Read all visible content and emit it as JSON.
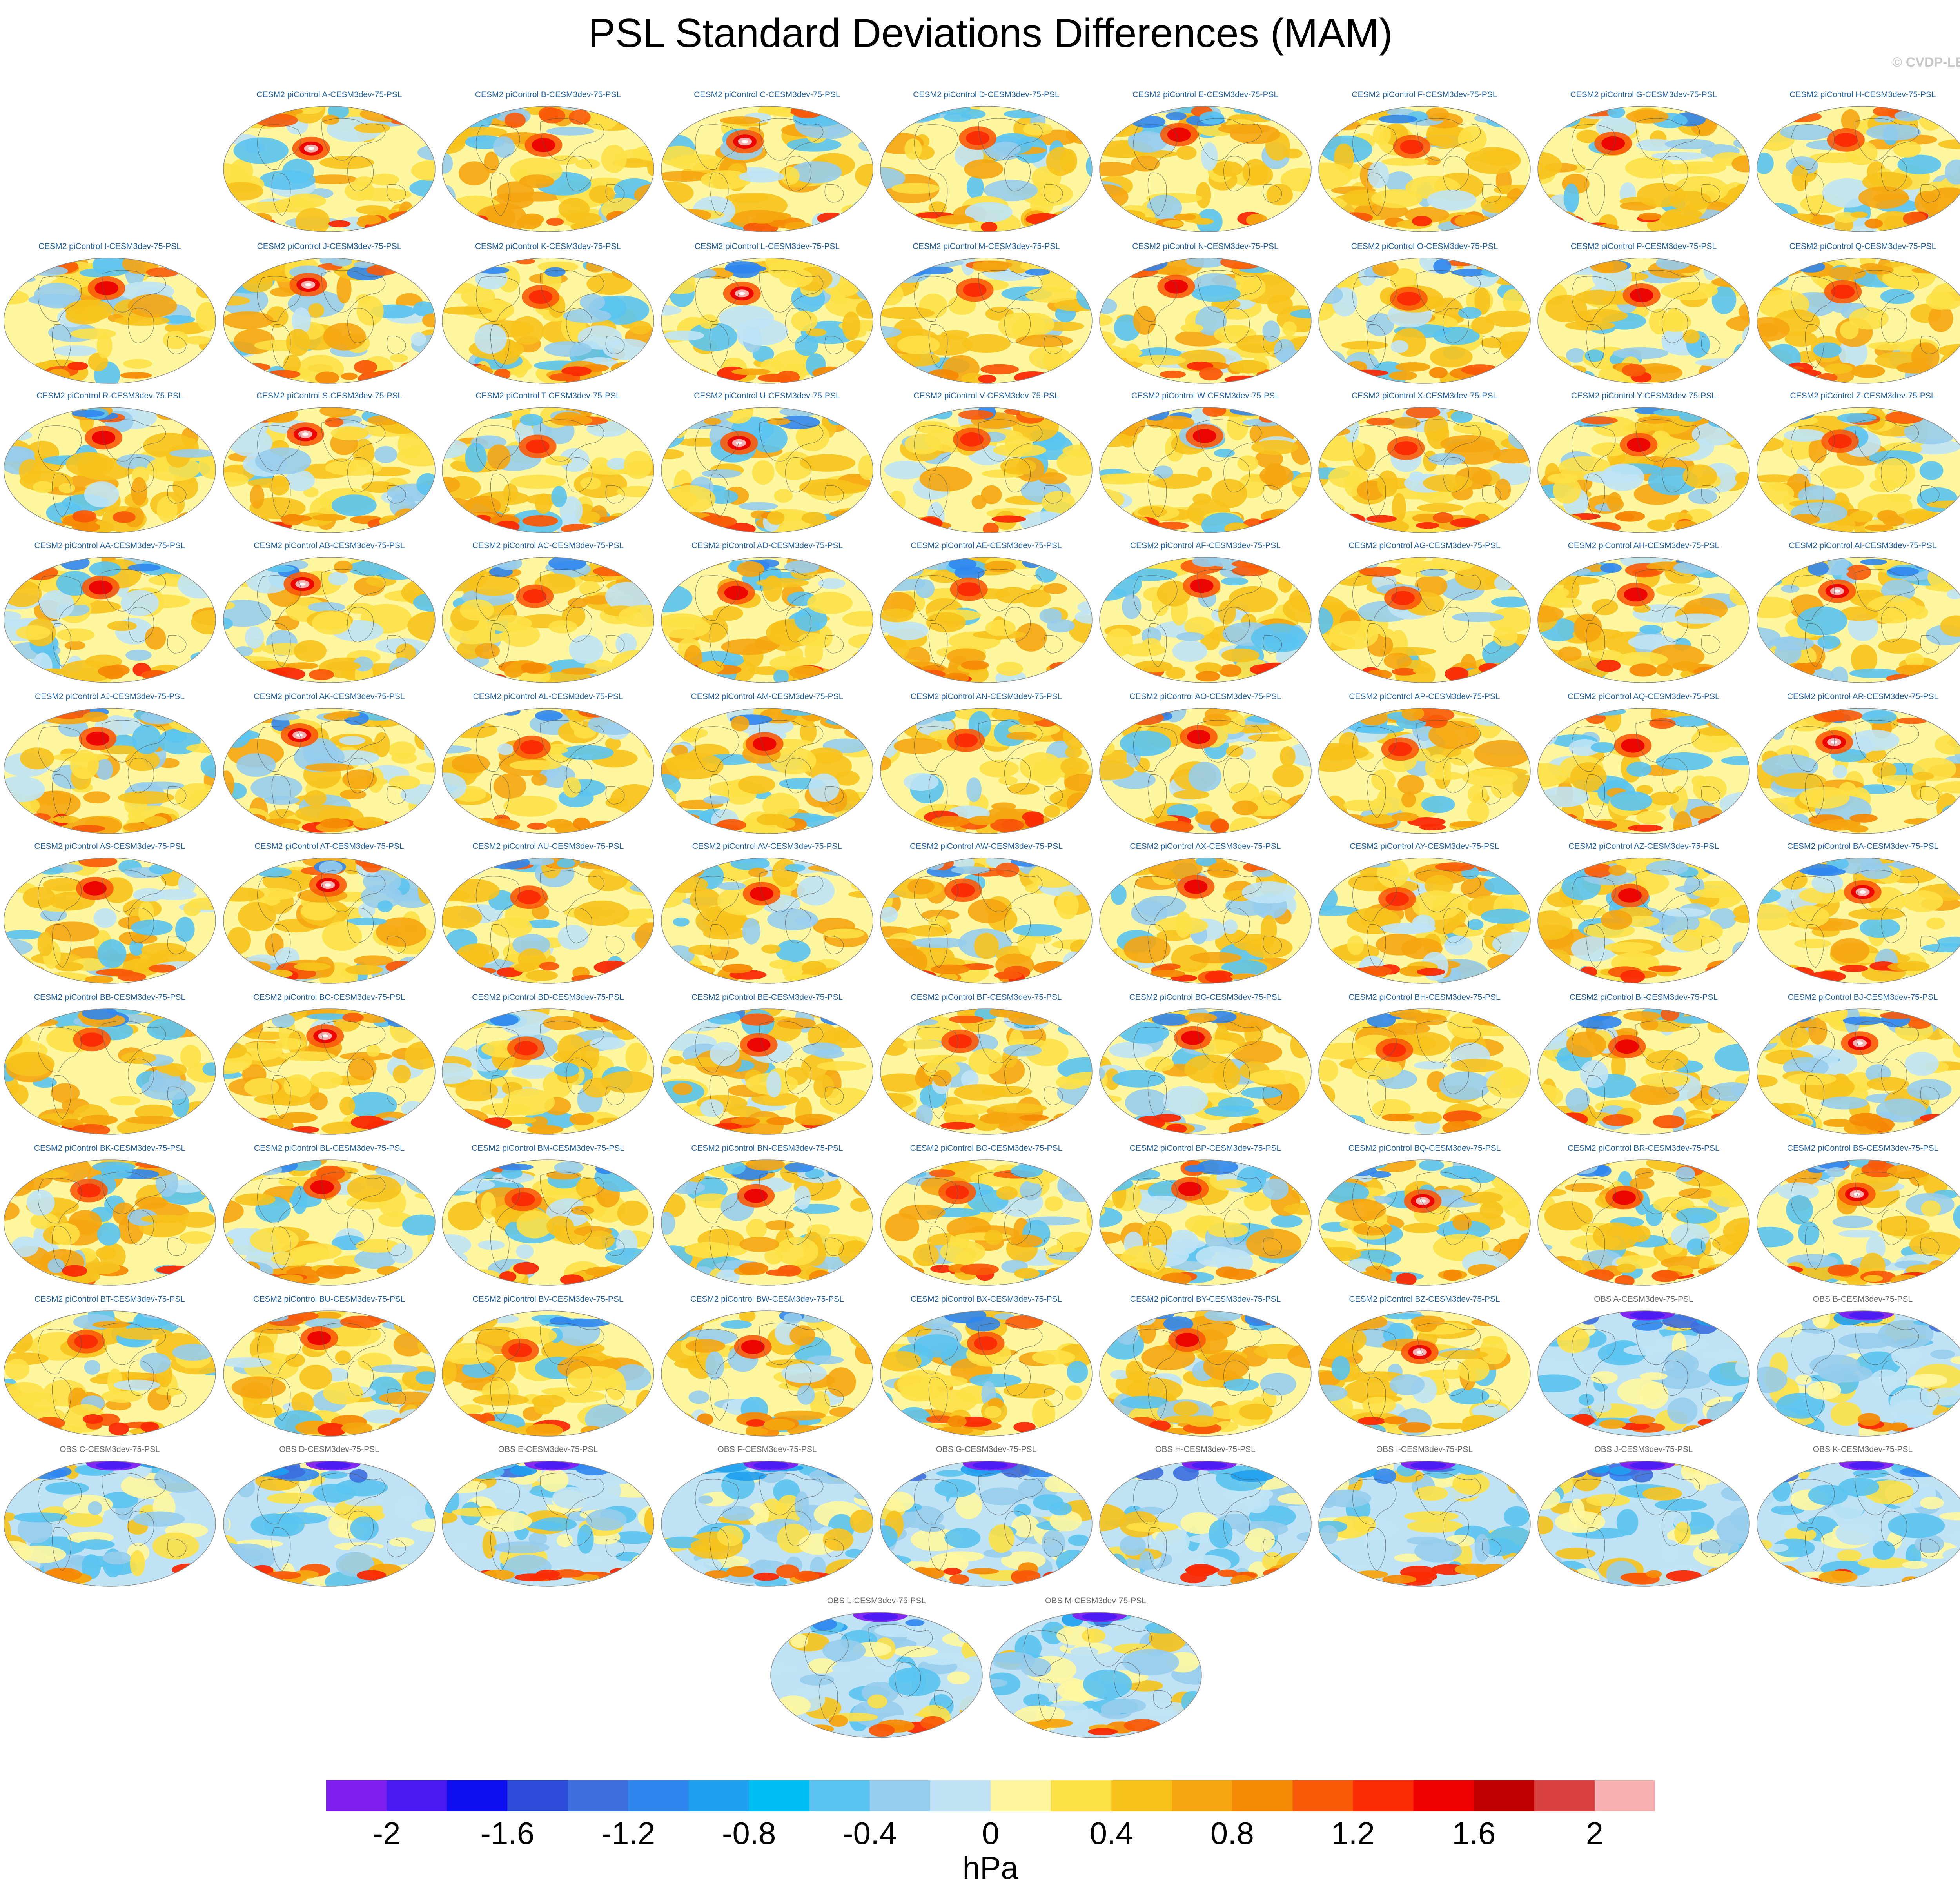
{
  "title": "PSL Standard Deviations Differences (MAM)",
  "copyright": "© CVDP-LE",
  "chart_data": {
    "type": "heatmap",
    "title": "PSL Standard Deviations Differences (MAM)",
    "units": "hPa",
    "colorbar": {
      "min": -2.2,
      "max": 2.2,
      "step": 0.2,
      "tick_labels": [
        "-2",
        "-1.6",
        "-1.2",
        "-0.8",
        "-0.4",
        "0",
        "0.4",
        "0.8",
        "1.2",
        "1.6",
        "2"
      ],
      "tick_values": [
        -2,
        -1.6,
        -1.2,
        -0.8,
        -0.4,
        0,
        0.4,
        0.8,
        1.2,
        1.6,
        2
      ],
      "colors": [
        "#7f1ff0",
        "#4a1cf2",
        "#0f0ff0",
        "#2e4cdc",
        "#3c6ee0",
        "#2f86ee",
        "#1f9ff0",
        "#00bff5",
        "#5ac3f0",
        "#96ccec",
        "#bfe3f5",
        "#fff7a0",
        "#fde046",
        "#f7c21c",
        "#f5a50f",
        "#f58a05",
        "#f95a08",
        "#fa2a05",
        "#ec0000",
        "#c00000",
        "#d94040",
        "#f6b0b0"
      ]
    },
    "panels": [
      {
        "label": "CESM2 piControl A-CESM3dev-75-PSL",
        "kind": "model"
      },
      {
        "label": "CESM2 piControl B-CESM3dev-75-PSL",
        "kind": "model"
      },
      {
        "label": "CESM2 piControl C-CESM3dev-75-PSL",
        "kind": "model"
      },
      {
        "label": "CESM2 piControl D-CESM3dev-75-PSL",
        "kind": "model"
      },
      {
        "label": "CESM2 piControl E-CESM3dev-75-PSL",
        "kind": "model"
      },
      {
        "label": "CESM2 piControl F-CESM3dev-75-PSL",
        "kind": "model"
      },
      {
        "label": "CESM2 piControl G-CESM3dev-75-PSL",
        "kind": "model"
      },
      {
        "label": "CESM2 piControl H-CESM3dev-75-PSL",
        "kind": "model"
      },
      {
        "label": "CESM2 piControl I-CESM3dev-75-PSL",
        "kind": "model"
      },
      {
        "label": "CESM2 piControl J-CESM3dev-75-PSL",
        "kind": "model"
      },
      {
        "label": "CESM2 piControl K-CESM3dev-75-PSL",
        "kind": "model"
      },
      {
        "label": "CESM2 piControl L-CESM3dev-75-PSL",
        "kind": "model"
      },
      {
        "label": "CESM2 piControl M-CESM3dev-75-PSL",
        "kind": "model"
      },
      {
        "label": "CESM2 piControl N-CESM3dev-75-PSL",
        "kind": "model"
      },
      {
        "label": "CESM2 piControl O-CESM3dev-75-PSL",
        "kind": "model"
      },
      {
        "label": "CESM2 piControl P-CESM3dev-75-PSL",
        "kind": "model"
      },
      {
        "label": "CESM2 piControl Q-CESM3dev-75-PSL",
        "kind": "model"
      },
      {
        "label": "CESM2 piControl R-CESM3dev-75-PSL",
        "kind": "model"
      },
      {
        "label": "CESM2 piControl S-CESM3dev-75-PSL",
        "kind": "model"
      },
      {
        "label": "CESM2 piControl T-CESM3dev-75-PSL",
        "kind": "model"
      },
      {
        "label": "CESM2 piControl U-CESM3dev-75-PSL",
        "kind": "model"
      },
      {
        "label": "CESM2 piControl V-CESM3dev-75-PSL",
        "kind": "model"
      },
      {
        "label": "CESM2 piControl W-CESM3dev-75-PSL",
        "kind": "model"
      },
      {
        "label": "CESM2 piControl X-CESM3dev-75-PSL",
        "kind": "model"
      },
      {
        "label": "CESM2 piControl Y-CESM3dev-75-PSL",
        "kind": "model"
      },
      {
        "label": "CESM2 piControl Z-CESM3dev-75-PSL",
        "kind": "model"
      },
      {
        "label": "CESM2 piControl AA-CESM3dev-75-PSL",
        "kind": "model"
      },
      {
        "label": "CESM2 piControl AB-CESM3dev-75-PSL",
        "kind": "model"
      },
      {
        "label": "CESM2 piControl AC-CESM3dev-75-PSL",
        "kind": "model"
      },
      {
        "label": "CESM2 piControl AD-CESM3dev-75-PSL",
        "kind": "model"
      },
      {
        "label": "CESM2 piControl AE-CESM3dev-75-PSL",
        "kind": "model"
      },
      {
        "label": "CESM2 piControl AF-CESM3dev-75-PSL",
        "kind": "model"
      },
      {
        "label": "CESM2 piControl AG-CESM3dev-75-PSL",
        "kind": "model"
      },
      {
        "label": "CESM2 piControl AH-CESM3dev-75-PSL",
        "kind": "model"
      },
      {
        "label": "CESM2 piControl AI-CESM3dev-75-PSL",
        "kind": "model"
      },
      {
        "label": "CESM2 piControl AJ-CESM3dev-75-PSL",
        "kind": "model"
      },
      {
        "label": "CESM2 piControl AK-CESM3dev-75-PSL",
        "kind": "model"
      },
      {
        "label": "CESM2 piControl AL-CESM3dev-75-PSL",
        "kind": "model"
      },
      {
        "label": "CESM2 piControl AM-CESM3dev-75-PSL",
        "kind": "model"
      },
      {
        "label": "CESM2 piControl AN-CESM3dev-75-PSL",
        "kind": "model"
      },
      {
        "label": "CESM2 piControl AO-CESM3dev-75-PSL",
        "kind": "model"
      },
      {
        "label": "CESM2 piControl AP-CESM3dev-75-PSL",
        "kind": "model"
      },
      {
        "label": "CESM2 piControl AQ-CESM3dev-75-PSL",
        "kind": "model"
      },
      {
        "label": "CESM2 piControl AR-CESM3dev-75-PSL",
        "kind": "model"
      },
      {
        "label": "CESM2 piControl AS-CESM3dev-75-PSL",
        "kind": "model"
      },
      {
        "label": "CESM2 piControl AT-CESM3dev-75-PSL",
        "kind": "model"
      },
      {
        "label": "CESM2 piControl AU-CESM3dev-75-PSL",
        "kind": "model"
      },
      {
        "label": "CESM2 piControl AV-CESM3dev-75-PSL",
        "kind": "model"
      },
      {
        "label": "CESM2 piControl AW-CESM3dev-75-PSL",
        "kind": "model"
      },
      {
        "label": "CESM2 piControl AX-CESM3dev-75-PSL",
        "kind": "model"
      },
      {
        "label": "CESM2 piControl AY-CESM3dev-75-PSL",
        "kind": "model"
      },
      {
        "label": "CESM2 piControl AZ-CESM3dev-75-PSL",
        "kind": "model"
      },
      {
        "label": "CESM2 piControl BA-CESM3dev-75-PSL",
        "kind": "model"
      },
      {
        "label": "CESM2 piControl BB-CESM3dev-75-PSL",
        "kind": "model"
      },
      {
        "label": "CESM2 piControl BC-CESM3dev-75-PSL",
        "kind": "model"
      },
      {
        "label": "CESM2 piControl BD-CESM3dev-75-PSL",
        "kind": "model"
      },
      {
        "label": "CESM2 piControl BE-CESM3dev-75-PSL",
        "kind": "model"
      },
      {
        "label": "CESM2 piControl BF-CESM3dev-75-PSL",
        "kind": "model"
      },
      {
        "label": "CESM2 piControl BG-CESM3dev-75-PSL",
        "kind": "model"
      },
      {
        "label": "CESM2 piControl BH-CESM3dev-75-PSL",
        "kind": "model"
      },
      {
        "label": "CESM2 piControl BI-CESM3dev-75-PSL",
        "kind": "model"
      },
      {
        "label": "CESM2 piControl BJ-CESM3dev-75-PSL",
        "kind": "model"
      },
      {
        "label": "CESM2 piControl BK-CESM3dev-75-PSL",
        "kind": "model"
      },
      {
        "label": "CESM2 piControl BL-CESM3dev-75-PSL",
        "kind": "model"
      },
      {
        "label": "CESM2 piControl BM-CESM3dev-75-PSL",
        "kind": "model"
      },
      {
        "label": "CESM2 piControl BN-CESM3dev-75-PSL",
        "kind": "model"
      },
      {
        "label": "CESM2 piControl BO-CESM3dev-75-PSL",
        "kind": "model"
      },
      {
        "label": "CESM2 piControl BP-CESM3dev-75-PSL",
        "kind": "model"
      },
      {
        "label": "CESM2 piControl BQ-CESM3dev-75-PSL",
        "kind": "model"
      },
      {
        "label": "CESM2 piControl BR-CESM3dev-75-PSL",
        "kind": "model"
      },
      {
        "label": "CESM2 piControl BS-CESM3dev-75-PSL",
        "kind": "model"
      },
      {
        "label": "CESM2 piControl BT-CESM3dev-75-PSL",
        "kind": "model"
      },
      {
        "label": "CESM2 piControl BU-CESM3dev-75-PSL",
        "kind": "model"
      },
      {
        "label": "CESM2 piControl BV-CESM3dev-75-PSL",
        "kind": "model"
      },
      {
        "label": "CESM2 piControl BW-CESM3dev-75-PSL",
        "kind": "model"
      },
      {
        "label": "CESM2 piControl BX-CESM3dev-75-PSL",
        "kind": "model"
      },
      {
        "label": "CESM2 piControl BY-CESM3dev-75-PSL",
        "kind": "model"
      },
      {
        "label": "CESM2 piControl BZ-CESM3dev-75-PSL",
        "kind": "model"
      },
      {
        "label": "OBS A-CESM3dev-75-PSL",
        "kind": "obs"
      },
      {
        "label": "OBS B-CESM3dev-75-PSL",
        "kind": "obs"
      },
      {
        "label": "OBS C-CESM3dev-75-PSL",
        "kind": "obs"
      },
      {
        "label": "OBS D-CESM3dev-75-PSL",
        "kind": "obs"
      },
      {
        "label": "OBS E-CESM3dev-75-PSL",
        "kind": "obs"
      },
      {
        "label": "OBS F-CESM3dev-75-PSL",
        "kind": "obs"
      },
      {
        "label": "OBS G-CESM3dev-75-PSL",
        "kind": "obs"
      },
      {
        "label": "OBS H-CESM3dev-75-PSL",
        "kind": "obs"
      },
      {
        "label": "OBS I-CESM3dev-75-PSL",
        "kind": "obs"
      },
      {
        "label": "OBS J-CESM3dev-75-PSL",
        "kind": "obs"
      },
      {
        "label": "OBS K-CESM3dev-75-PSL",
        "kind": "obs"
      },
      {
        "label": "OBS L-CESM3dev-75-PSL",
        "kind": "obs"
      },
      {
        "label": "OBS M-CESM3dev-75-PSL",
        "kind": "obs"
      }
    ]
  }
}
